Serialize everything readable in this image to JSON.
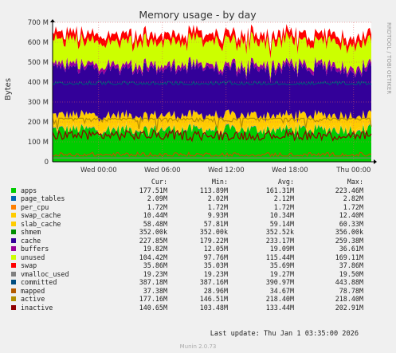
{
  "chart_data": {
    "type": "area",
    "title": "Memory usage - by day",
    "ylabel": "Bytes",
    "y_unit": "bytes",
    "ylim": [
      0,
      700000000
    ],
    "y_ticks": [
      {
        "value": 0,
        "label": "0"
      },
      {
        "value": 100000000,
        "label": "100 M"
      },
      {
        "value": 200000000,
        "label": "200 M"
      },
      {
        "value": 300000000,
        "label": "300 M"
      },
      {
        "value": 400000000,
        "label": "400 M"
      },
      {
        "value": 500000000,
        "label": "500 M"
      },
      {
        "value": 600000000,
        "label": "600 M"
      },
      {
        "value": 700000000,
        "label": "700 M"
      }
    ],
    "x_ticks": [
      "Wed 00:00",
      "Wed 06:00",
      "Wed 12:00",
      "Wed 18:00",
      "Thu 00:00"
    ],
    "grid": true,
    "watermark": "RRDTOOL / TOBI OETIKER",
    "legend_headers": {
      "cur": "Cur:",
      "min": "Min:",
      "avg": "Avg:",
      "max": "Max:"
    },
    "series": [
      {
        "name": "apps",
        "color": "#00cc00",
        "kind": "area",
        "cur": "177.51M",
        "min": "113.89M",
        "avg": "161.31M",
        "max": "223.46M"
      },
      {
        "name": "page_tables",
        "color": "#0066b3",
        "kind": "area",
        "cur": "2.09M",
        "min": "2.02M",
        "avg": "2.12M",
        "max": "2.82M"
      },
      {
        "name": "per_cpu",
        "color": "#ff8000",
        "kind": "area",
        "cur": "1.72M",
        "min": "1.72M",
        "avg": "1.72M",
        "max": "1.72M"
      },
      {
        "name": "swap_cache",
        "color": "#ffcc00",
        "kind": "area",
        "cur": "10.44M",
        "min": "9.93M",
        "avg": "10.34M",
        "max": "12.40M"
      },
      {
        "name": "slab_cache",
        "color": "#ffcc00",
        "kind": "area",
        "cur": "58.48M",
        "min": "57.81M",
        "avg": "59.14M",
        "max": "60.33M"
      },
      {
        "name": "shmem",
        "color": "#008f00",
        "kind": "area",
        "cur": "352.00k",
        "min": "352.00k",
        "avg": "352.52k",
        "max": "356.00k"
      },
      {
        "name": "cache",
        "color": "#330099",
        "kind": "area",
        "cur": "227.85M",
        "min": "179.22M",
        "avg": "233.17M",
        "max": "259.38M"
      },
      {
        "name": "buffers",
        "color": "#990099",
        "kind": "area",
        "cur": "19.82M",
        "min": "12.05M",
        "avg": "19.09M",
        "max": "36.61M"
      },
      {
        "name": "unused",
        "color": "#ccff00",
        "kind": "area",
        "cur": "104.42M",
        "min": "97.76M",
        "avg": "115.44M",
        "max": "169.11M"
      },
      {
        "name": "swap",
        "color": "#ff0000",
        "kind": "area",
        "cur": "35.86M",
        "min": "35.03M",
        "avg": "35.69M",
        "max": "37.86M"
      },
      {
        "name": "vmalloc_used",
        "color": "#808080",
        "kind": "line",
        "cur": "19.23M",
        "min": "19.23M",
        "avg": "19.27M",
        "max": "19.50M"
      },
      {
        "name": "committed",
        "color": "#004d80",
        "kind": "line",
        "cur": "387.18M",
        "min": "387.16M",
        "avg": "390.97M",
        "max": "443.88M"
      },
      {
        "name": "mapped",
        "color": "#b35a00",
        "kind": "line",
        "cur": "37.38M",
        "min": "28.96M",
        "avg": "34.67M",
        "max": "78.78M"
      },
      {
        "name": "active",
        "color": "#b38f00",
        "kind": "line",
        "cur": "177.16M",
        "min": "146.51M",
        "avg": "218.40M",
        "max": "218.40M"
      },
      {
        "name": "inactive",
        "color": "#8f0000",
        "kind": "line",
        "cur": "140.65M",
        "min": "103.48M",
        "avg": "133.44M",
        "max": "202.91M"
      }
    ]
  },
  "footer": {
    "last_update": "Last update: Thu Jan  1 03:35:00 2026",
    "version": "Munin 2.0.73"
  }
}
